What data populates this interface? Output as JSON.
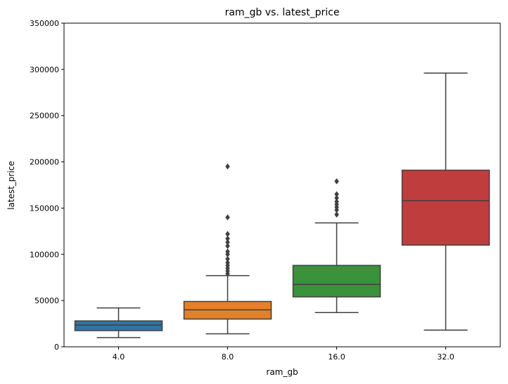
{
  "chart_data": {
    "type": "box",
    "title": "ram_gb vs. latest_price",
    "xlabel": "ram_gb",
    "ylabel": "latest_price",
    "ylim": [
      0,
      350000
    ],
    "yticks": [
      0,
      50000,
      100000,
      150000,
      200000,
      250000,
      300000,
      350000
    ],
    "ytick_labels": [
      "0",
      "50000",
      "100000",
      "150000",
      "200000",
      "250000",
      "300000",
      "350000"
    ],
    "grid": false,
    "legend": "none",
    "categories": [
      "4.0",
      "8.0",
      "16.0",
      "32.0"
    ],
    "boxes": [
      {
        "category": "4.0",
        "color": "#3274a1",
        "whislo": 10000,
        "q1": 17500,
        "median": 23500,
        "q3": 28000,
        "whishi": 42000,
        "fliers": []
      },
      {
        "category": "8.0",
        "color": "#e1812c",
        "whislo": 14000,
        "q1": 30000,
        "median": 40000,
        "q3": 49000,
        "whishi": 77000,
        "fliers": [
          79000,
          82000,
          85000,
          88000,
          91000,
          95000,
          100000,
          103000,
          109000,
          113000,
          117000,
          122000,
          140000,
          195000
        ]
      },
      {
        "category": "16.0",
        "color": "#3a923a",
        "whislo": 37000,
        "q1": 54000,
        "median": 67500,
        "q3": 88000,
        "whishi": 134000,
        "fliers": [
          143000,
          148000,
          151000,
          154000,
          157000,
          161000,
          165000,
          179000
        ]
      },
      {
        "category": "32.0",
        "color": "#c03d3e",
        "whislo": 18000,
        "q1": 110000,
        "median": 158000,
        "q3": 191000,
        "whishi": 296000,
        "fliers": []
      }
    ]
  }
}
